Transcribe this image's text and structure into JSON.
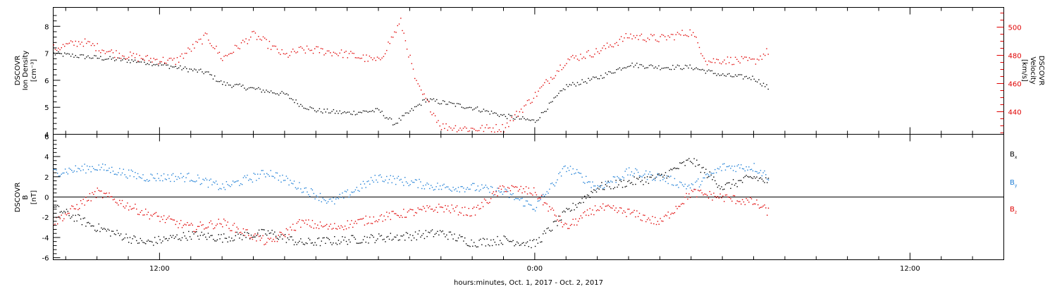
{
  "figure": {
    "x_title": "hours:minutes, Oct.  1, 2017 - Oct.  2, 2017",
    "x_tick_labels": [
      "12:00",
      "0:00",
      "12:00"
    ],
    "x_tick_hours": [
      12,
      24,
      36
    ],
    "x_range_hours": [
      8.6,
      39.0
    ]
  },
  "chart_data": [
    {
      "type": "scatter",
      "panel": "top",
      "left_axis": {
        "label_lines": [
          "DSCOVR",
          "Ion Density",
          "[cm⁻³]"
        ],
        "ylim": [
          4,
          8.7
        ],
        "tick_values": [
          4,
          5,
          6,
          7,
          8
        ],
        "tick_labels": [
          "4",
          "5",
          "6",
          "7",
          "8"
        ]
      },
      "right_axis": {
        "label_lines": [
          "DSCOVR",
          "Velocity",
          "[km/s]"
        ],
        "ylim": [
          424,
          514
        ],
        "tick_values": [
          440,
          460,
          480,
          500
        ],
        "tick_labels": [
          "440",
          "460",
          "480",
          "500"
        ],
        "color": "#e00000"
      },
      "series": [
        {
          "color": "#000000",
          "axis": "left",
          "x": [
            8.6,
            9.5,
            10.5,
            11.5,
            12.5,
            13.5,
            14.0,
            15.0,
            16.0,
            16.5,
            17.0,
            18.0,
            19.0,
            19.5,
            20.5,
            21.0,
            22.0,
            23.0,
            24.0,
            25.0,
            26.0,
            27.0,
            28.0,
            29.0,
            30.0,
            31.0,
            31.5
          ],
          "y": [
            7.0,
            6.9,
            6.8,
            6.7,
            6.5,
            6.3,
            5.9,
            5.7,
            5.5,
            5.1,
            4.9,
            4.8,
            4.9,
            4.4,
            5.3,
            5.2,
            5.0,
            4.7,
            4.5,
            5.8,
            6.1,
            6.6,
            6.5,
            6.5,
            6.2,
            6.1,
            5.7
          ]
        },
        {
          "color": "#e00000",
          "axis": "right",
          "x": [
            8.6,
            9.5,
            10.5,
            11.5,
            12.5,
            13.5,
            14.0,
            15.0,
            16.0,
            16.5,
            17.0,
            18.0,
            19.0,
            19.7,
            20.2,
            21.0,
            22.0,
            23.0,
            24.0,
            25.0,
            26.0,
            27.0,
            28.0,
            29.0,
            29.5,
            30.0,
            31.0,
            31.5
          ],
          "y": [
            485,
            490,
            482,
            478,
            476,
            494,
            478,
            495,
            480,
            484,
            484,
            481,
            476,
            504,
            460,
            430,
            428,
            429,
            452,
            477,
            483,
            494,
            492,
            497,
            476,
            477,
            476,
            484
          ]
        }
      ]
    },
    {
      "type": "scatter",
      "panel": "bottom",
      "left_axis": {
        "label_lines": [
          "DSCOVR",
          "B",
          "[nT]"
        ],
        "ylim": [
          -6.2,
          6.2
        ],
        "tick_values": [
          -6,
          -4,
          -2,
          0,
          2,
          4,
          6
        ],
        "tick_labels": [
          "-6",
          "-4",
          "-2",
          "0",
          "2",
          "4",
          "6"
        ]
      },
      "zero_line": 0,
      "series": [
        {
          "name": "Bx",
          "color": "#000000",
          "x": [
            8.6,
            10.0,
            11.5,
            13.0,
            14.0,
            15.5,
            16.5,
            17.5,
            19.0,
            20.0,
            21.0,
            22.0,
            23.0,
            24.0,
            25.0,
            26.0,
            27.0,
            28.0,
            29.0,
            30.0,
            31.0,
            31.5
          ],
          "y": [
            -1.0,
            -3.0,
            -4.5,
            -3.7,
            -4.0,
            -3.5,
            -4.5,
            -4.3,
            -4.0,
            -3.8,
            -3.5,
            -4.5,
            -4.2,
            -4.6,
            -1.5,
            1.0,
            1.5,
            2.0,
            3.7,
            1.0,
            2.0,
            1.5
          ]
        },
        {
          "name": "By",
          "color": "#1f7fd6",
          "x": [
            8.6,
            10.0,
            11.5,
            13.0,
            14.0,
            15.5,
            16.5,
            17.5,
            19.0,
            20.0,
            21.0,
            22.0,
            23.0,
            24.0,
            25.0,
            26.0,
            27.0,
            28.0,
            29.0,
            30.0,
            31.0,
            31.5
          ],
          "y": [
            2.5,
            3.0,
            2.0,
            2.0,
            1.0,
            2.5,
            1.0,
            -0.5,
            2.0,
            1.5,
            1.0,
            1.0,
            0.5,
            -1.0,
            3.0,
            1.0,
            2.5,
            2.0,
            1.0,
            3.0,
            3.0,
            2.0
          ]
        },
        {
          "name": "Bz",
          "color": "#e00000",
          "x": [
            8.6,
            10.0,
            11.5,
            13.0,
            14.0,
            15.5,
            16.5,
            17.5,
            19.0,
            20.0,
            21.0,
            22.0,
            23.0,
            24.0,
            25.0,
            26.0,
            27.0,
            28.0,
            29.0,
            30.0,
            31.0,
            31.5
          ],
          "y": [
            -2.5,
            0.5,
            -1.5,
            -3.0,
            -2.5,
            -4.5,
            -2.5,
            -3.0,
            -2.0,
            -1.5,
            -1.0,
            -1.5,
            1.0,
            0.5,
            -3.0,
            -1.0,
            -1.5,
            -2.5,
            0.5,
            0.0,
            -0.5,
            -1.5
          ]
        }
      ],
      "legend": [
        "B",
        "B",
        "B"
      ],
      "legend_subscripts": [
        "x",
        "y",
        "z"
      ],
      "legend_colors": [
        "#000000",
        "#1f7fd6",
        "#e00000"
      ]
    }
  ]
}
